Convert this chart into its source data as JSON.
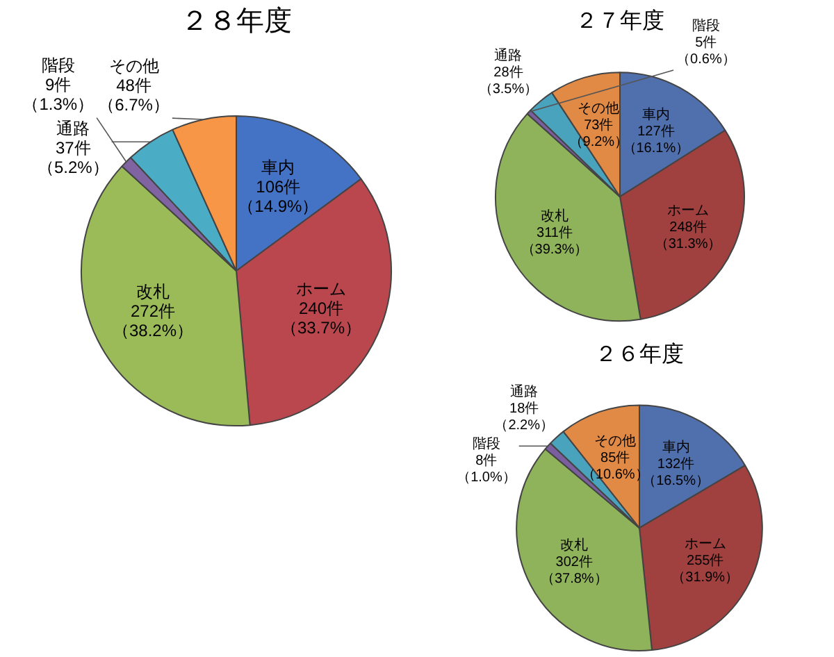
{
  "chart_data": [
    {
      "type": "pie",
      "title": "２８年度",
      "categories": [
        "車内",
        "ホーム",
        "改札",
        "階段",
        "通路",
        "その他"
      ],
      "values": [
        106,
        240,
        272,
        9,
        37,
        48
      ],
      "colors": [
        "#4472c4",
        "#b9474d",
        "#9bbb59",
        "#8064a2",
        "#4bacc6",
        "#f79646"
      ],
      "value_labels": [
        "106件（14.9%）",
        "240件（33.7%）",
        "272件（38.2%）",
        "9件（1.3%）",
        "37件（5.2%）",
        "48件（6.7%）"
      ],
      "legend": false
    },
    {
      "type": "pie",
      "title": "２７年度",
      "categories": [
        "車内",
        "ホーム",
        "改札",
        "階段",
        "通路",
        "その他"
      ],
      "values": [
        127,
        248,
        311,
        5,
        28,
        73
      ],
      "colors": [
        "#4f6fad",
        "#a0403f",
        "#8fb35a",
        "#7a5e9e",
        "#4aa3bd",
        "#e08a45"
      ],
      "value_labels": [
        "127件（16.1%）",
        "248件（31.3%）",
        "311件（39.3%）",
        "5件（0.6%）",
        "28件（3.5%）",
        "73件（9.2%）"
      ],
      "legend": false
    },
    {
      "type": "pie",
      "title": "２６年度",
      "categories": [
        "車内",
        "ホーム",
        "改札",
        "階段",
        "通路",
        "その他"
      ],
      "values": [
        132,
        255,
        302,
        8,
        18,
        85
      ],
      "colors": [
        "#4f6fad",
        "#a0403f",
        "#8fb35a",
        "#7a5e9e",
        "#4aa3bd",
        "#e08a45"
      ],
      "value_labels": [
        "132件（16.5%）",
        "255件（31.9%）",
        "302件（37.8%）",
        "8件（1.0%）",
        "18件（2.2%）",
        "85件（10.6%）"
      ],
      "legend": false
    }
  ]
}
